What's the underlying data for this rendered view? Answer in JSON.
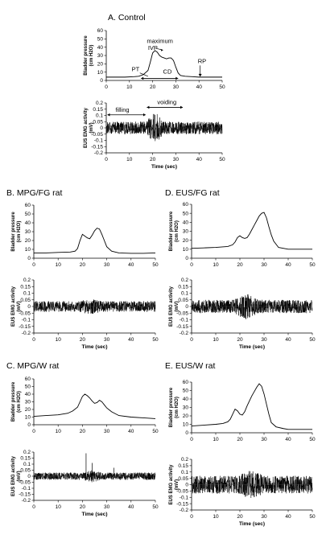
{
  "chart_data": [
    {
      "id": "A-pressure",
      "panel_title": "A. Control",
      "type": "line",
      "ylabel": [
        "Bladder pressure",
        "(cm H2O)"
      ],
      "xlabel": "",
      "xlim": [
        0,
        50
      ],
      "ylim": [
        0,
        60
      ],
      "xticks": [
        0,
        10,
        20,
        30,
        40,
        50
      ],
      "yticks": [
        0,
        10,
        20,
        30,
        40,
        50,
        60
      ],
      "series": [
        {
          "x": [
            0,
            8,
            12,
            14,
            16,
            18,
            19,
            20,
            21,
            22,
            23,
            24,
            25,
            26,
            27,
            28,
            29,
            30,
            31,
            32,
            34,
            37,
            40,
            45,
            50
          ],
          "y": [
            4,
            4,
            4.5,
            5,
            7,
            12,
            22,
            33,
            36,
            34,
            30,
            28,
            27,
            26,
            27,
            27,
            24,
            16,
            9,
            6,
            5,
            4.5,
            4,
            4,
            4
          ]
        }
      ],
      "annotations": [
        {
          "text": "maximum",
          "x": 17.5,
          "y": 45
        },
        {
          "text": "IVP",
          "x": 18,
          "y": 37
        },
        {
          "text": "PT",
          "x": 11,
          "y": 11
        },
        {
          "text": "CD",
          "x": 24.5,
          "y": 8
        },
        {
          "text": "RP",
          "x": 39.5,
          "y": 21
        }
      ]
    },
    {
      "id": "A-emg",
      "type": "line",
      "ylabel": [
        "EUS EMG activity",
        "(mV)"
      ],
      "xlabel": "Time (sec)",
      "xlim": [
        0,
        50
      ],
      "ylim": [
        -0.2,
        0.2
      ],
      "xticks": [
        0,
        10,
        20,
        30,
        40,
        50
      ],
      "yticks": [
        -0.2,
        -0.15,
        -0.1,
        -0.05,
        0,
        0.05,
        0.1,
        0.15,
        0.2
      ],
      "noise": {
        "base": 0.05,
        "burst_start": 17,
        "burst_end": 25,
        "burst_amp": 0.13
      },
      "annotations": [
        {
          "text": "filling",
          "x": 4,
          "y": 0.13
        },
        {
          "text": "voiding",
          "x": 22,
          "y": 0.19
        }
      ]
    },
    {
      "id": "B-pressure",
      "panel_title": "B. MPG/FG rat",
      "type": "line",
      "ylabel": [
        "Bladder pressure",
        "(cm H2O)"
      ],
      "xlabel": "",
      "xlim": [
        0,
        50
      ],
      "ylim": [
        0,
        60
      ],
      "xticks": [
        0,
        10,
        20,
        30,
        40,
        50
      ],
      "yticks": [
        0,
        10,
        20,
        30,
        40,
        50,
        60
      ],
      "series": [
        {
          "x": [
            0,
            5,
            10,
            15,
            17,
            18,
            19,
            20,
            21,
            22,
            23,
            24,
            25,
            26,
            27,
            28,
            29,
            30,
            32,
            35,
            40,
            45,
            50
          ],
          "y": [
            6,
            6,
            6.5,
            7,
            8,
            11,
            20,
            27,
            25,
            23,
            22,
            26,
            31,
            34,
            33,
            27,
            20,
            13,
            8,
            6,
            5.5,
            5.5,
            6
          ]
        }
      ]
    },
    {
      "id": "B-emg",
      "type": "line",
      "ylabel": [
        "EUS EMG activity",
        "(mV)"
      ],
      "xlabel": "Time (sec)",
      "xlim": [
        0,
        50
      ],
      "ylim": [
        -0.2,
        0.2
      ],
      "xticks": [
        0,
        10,
        20,
        30,
        40,
        50
      ],
      "yticks": [
        -0.2,
        -0.15,
        -0.1,
        -0.05,
        0,
        0.05,
        0.1,
        0.15,
        0.2
      ],
      "noise": {
        "base": 0.04,
        "burst_start": 18,
        "burst_end": 28,
        "burst_amp": 0.06
      }
    },
    {
      "id": "D-pressure",
      "panel_title": "D. EUS/FG rat",
      "type": "line",
      "ylabel": [
        "Bladder pressure",
        "(cm H2O)"
      ],
      "xlabel": "",
      "xlim": [
        0,
        50
      ],
      "ylim": [
        0,
        60
      ],
      "xticks": [
        0,
        10,
        20,
        30,
        40,
        50
      ],
      "yticks": [
        0,
        10,
        20,
        30,
        40,
        50,
        60
      ],
      "series": [
        {
          "x": [
            0,
            5,
            10,
            15,
            17,
            18,
            19,
            20,
            21,
            22,
            23,
            24,
            25,
            26,
            27,
            28,
            29,
            30,
            31,
            32,
            33,
            34,
            36,
            40,
            45,
            50
          ],
          "y": [
            11,
            11.5,
            12,
            13,
            15,
            18,
            23,
            25,
            23,
            22,
            23,
            27,
            32,
            37,
            42,
            47,
            50,
            51,
            45,
            35,
            26,
            19,
            12,
            10,
            10,
            10
          ]
        }
      ]
    },
    {
      "id": "D-emg",
      "type": "line",
      "ylabel": [
        "EUS EMG activity",
        "(mV)"
      ],
      "xlabel": "Time (sec)",
      "xlim": [
        0,
        50
      ],
      "ylim": [
        -0.2,
        0.2
      ],
      "xticks": [
        0,
        10,
        20,
        30,
        40,
        50
      ],
      "yticks": [
        -0.2,
        -0.15,
        -0.1,
        -0.05,
        0,
        0.05,
        0.1,
        0.15,
        0.2
      ],
      "noise": {
        "base": 0.05,
        "burst_start": 17,
        "burst_end": 28,
        "burst_amp": 0.1
      }
    },
    {
      "id": "C-pressure",
      "panel_title": "C. MPG/W rat",
      "type": "line",
      "ylabel": [
        "Bladder pressure",
        "(cm H2O)"
      ],
      "xlabel": "",
      "xlim": [
        0,
        50
      ],
      "ylim": [
        0,
        60
      ],
      "xticks": [
        0,
        10,
        20,
        30,
        40,
        50
      ],
      "yticks": [
        0,
        10,
        20,
        30,
        40,
        50,
        60
      ],
      "series": [
        {
          "x": [
            0,
            5,
            10,
            14,
            16,
            18,
            19,
            20,
            21,
            22,
            23,
            24,
            25,
            26,
            27,
            28,
            29,
            30,
            32,
            35,
            40,
            45,
            50
          ],
          "y": [
            11,
            12,
            13,
            15,
            18,
            23,
            30,
            37,
            40,
            38,
            35,
            31,
            28,
            29,
            32,
            30,
            26,
            22,
            17,
            12,
            10,
            9,
            8
          ]
        }
      ]
    },
    {
      "id": "C-emg",
      "type": "line",
      "ylabel": [
        "EUS EMG activity",
        "(mV)"
      ],
      "xlabel": "Time (sec)",
      "xlim": [
        0,
        50
      ],
      "ylim": [
        -0.2,
        0.2
      ],
      "xticks": [
        0,
        10,
        20,
        30,
        40,
        50
      ],
      "yticks": [
        -0.2,
        -0.15,
        -0.1,
        -0.05,
        0,
        0.05,
        0.1,
        0.15,
        0.2
      ],
      "noise": {
        "base": 0.03,
        "burst_start": 20,
        "burst_end": 28,
        "burst_amp": 0.05
      },
      "spikes": [
        {
          "x": 21.5,
          "y": 0.19
        },
        {
          "x": 24,
          "y": 0.11
        },
        {
          "x": 33,
          "y": 0.07
        }
      ]
    },
    {
      "id": "E-pressure",
      "panel_title": "E. EUS/W rat",
      "type": "line",
      "ylabel": [
        "Bladder pressure",
        "(cm H2O)"
      ],
      "xlabel": "",
      "xlim": [
        0,
        50
      ],
      "ylim": [
        0,
        60
      ],
      "xticks": [
        0,
        10,
        20,
        30,
        40,
        50
      ],
      "yticks": [
        0,
        10,
        20,
        30,
        40,
        50,
        60
      ],
      "series": [
        {
          "x": [
            0,
            5,
            10,
            13,
            15,
            16,
            17,
            18,
            19,
            20,
            21,
            22,
            23,
            24,
            25,
            26,
            27,
            28,
            29,
            30,
            31,
            32,
            33,
            35,
            38,
            40,
            45,
            50
          ],
          "y": [
            8,
            9,
            10,
            11,
            13,
            16,
            22,
            28,
            26,
            22,
            21,
            25,
            32,
            38,
            44,
            49,
            54,
            58,
            55,
            46,
            34,
            22,
            12,
            7,
            5,
            4,
            4,
            4
          ]
        }
      ]
    },
    {
      "id": "E-emg",
      "type": "line",
      "ylabel": [
        "EUS EMG activity",
        "(mV)"
      ],
      "xlabel": "Time (sec)",
      "xlim": [
        0,
        50
      ],
      "ylim": [
        -0.2,
        0.2
      ],
      "xticks": [
        0,
        10,
        20,
        30,
        40,
        50
      ],
      "yticks": [
        -0.2,
        -0.15,
        -0.1,
        -0.05,
        0,
        0.05,
        0.1,
        0.15,
        0.2
      ],
      "noise": {
        "base": 0.07,
        "burst_start": 19,
        "burst_end": 30,
        "burst_amp": 0.12
      }
    }
  ]
}
